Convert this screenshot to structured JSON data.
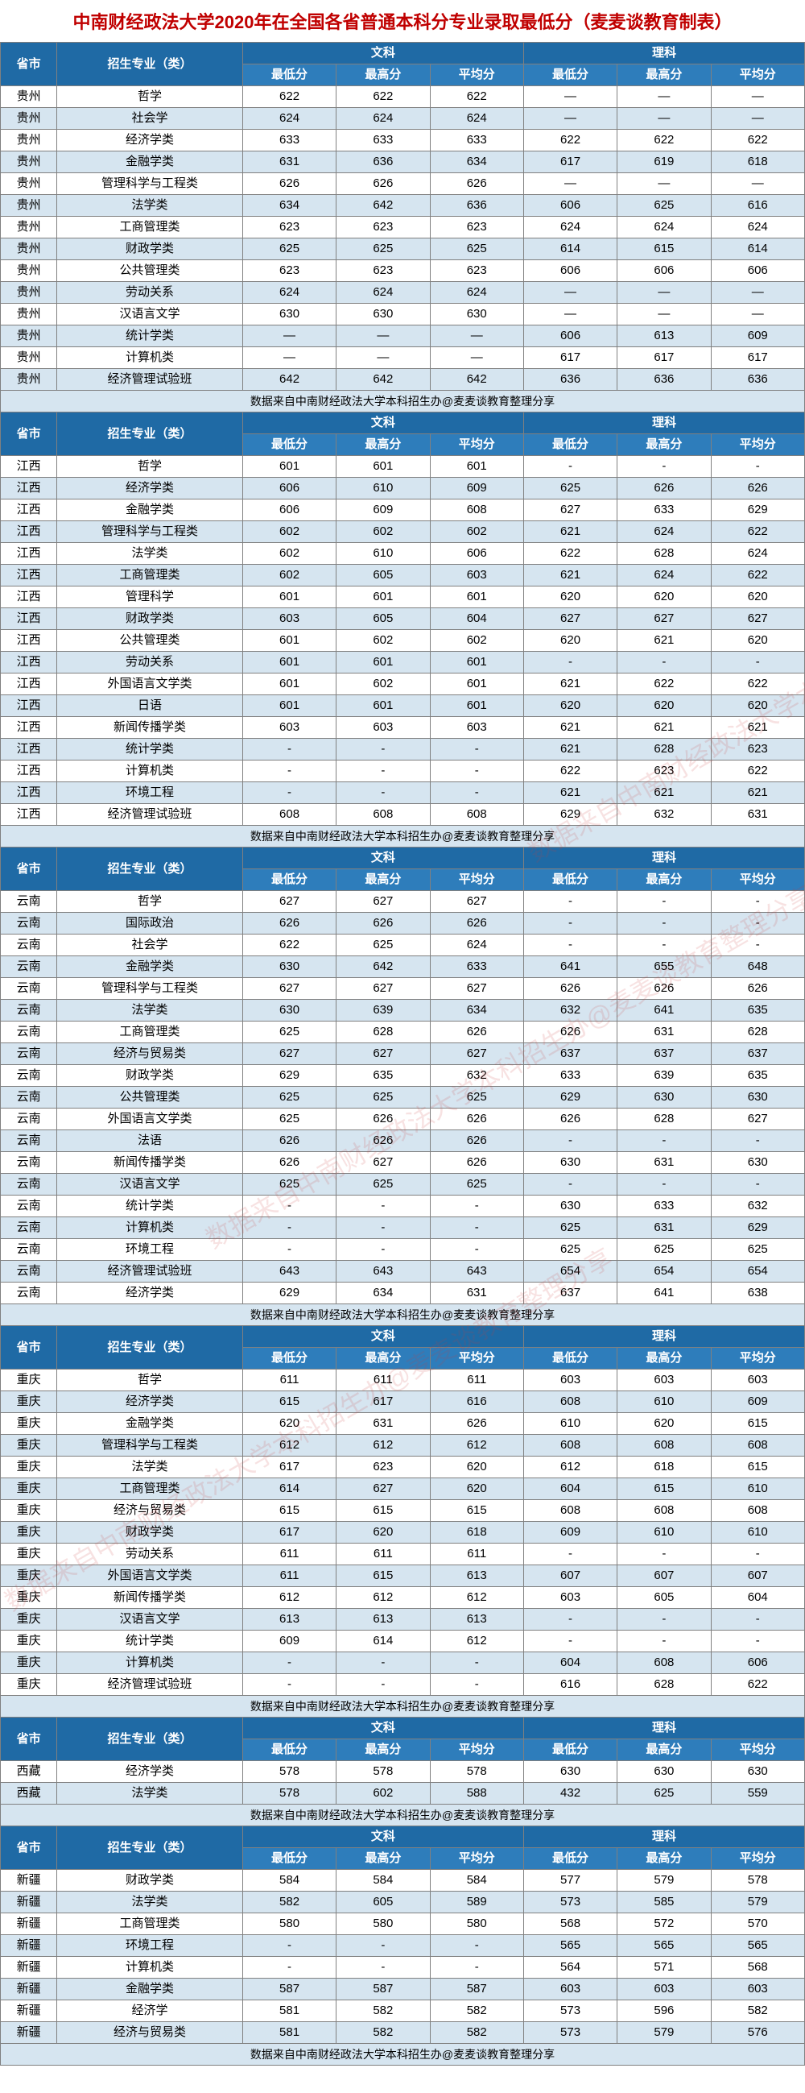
{
  "title": "中南财经政法大学2020年在全国各省普通本科分专业录取最低分（麦麦谈教育制表）",
  "source_note": "数据来自中南财经政法大学本科招生办@麦麦谈教育整理分享",
  "watermark_text": "数据来自中南财经政法大学本科招生办@麦麦谈教育整理分享",
  "headers": {
    "province": "省市",
    "major": "招生专业（类）",
    "liberal": "文科",
    "science": "理科",
    "min": "最低分",
    "max": "最高分",
    "avg": "平均分"
  },
  "colors": {
    "title": "#c00000",
    "header1_bg": "#1f6aa5",
    "header2_bg": "#2e7dbb",
    "header_fg": "#ffffff",
    "row_even_bg": "#d6e5f0",
    "row_odd_bg": "#ffffff",
    "border": "#808080"
  },
  "sections": [
    {
      "rows": [
        [
          "贵州",
          "哲学",
          "622",
          "622",
          "622",
          "—",
          "—",
          "—"
        ],
        [
          "贵州",
          "社会学",
          "624",
          "624",
          "624",
          "—",
          "—",
          "—"
        ],
        [
          "贵州",
          "经济学类",
          "633",
          "633",
          "633",
          "622",
          "622",
          "622"
        ],
        [
          "贵州",
          "金融学类",
          "631",
          "636",
          "634",
          "617",
          "619",
          "618"
        ],
        [
          "贵州",
          "管理科学与工程类",
          "626",
          "626",
          "626",
          "—",
          "—",
          "—"
        ],
        [
          "贵州",
          "法学类",
          "634",
          "642",
          "636",
          "606",
          "625",
          "616"
        ],
        [
          "贵州",
          "工商管理类",
          "623",
          "623",
          "623",
          "624",
          "624",
          "624"
        ],
        [
          "贵州",
          "财政学类",
          "625",
          "625",
          "625",
          "614",
          "615",
          "614"
        ],
        [
          "贵州",
          "公共管理类",
          "623",
          "623",
          "623",
          "606",
          "606",
          "606"
        ],
        [
          "贵州",
          "劳动关系",
          "624",
          "624",
          "624",
          "—",
          "—",
          "—"
        ],
        [
          "贵州",
          "汉语言文学",
          "630",
          "630",
          "630",
          "—",
          "—",
          "—"
        ],
        [
          "贵州",
          "统计学类",
          "—",
          "—",
          "—",
          "606",
          "613",
          "609"
        ],
        [
          "贵州",
          "计算机类",
          "—",
          "—",
          "—",
          "617",
          "617",
          "617"
        ],
        [
          "贵州",
          "经济管理试验班",
          "642",
          "642",
          "642",
          "636",
          "636",
          "636"
        ]
      ]
    },
    {
      "rows": [
        [
          "江西",
          "哲学",
          "601",
          "601",
          "601",
          "-",
          "-",
          "-"
        ],
        [
          "江西",
          "经济学类",
          "606",
          "610",
          "609",
          "625",
          "626",
          "626"
        ],
        [
          "江西",
          "金融学类",
          "606",
          "609",
          "608",
          "627",
          "633",
          "629"
        ],
        [
          "江西",
          "管理科学与工程类",
          "602",
          "602",
          "602",
          "621",
          "624",
          "622"
        ],
        [
          "江西",
          "法学类",
          "602",
          "610",
          "606",
          "622",
          "628",
          "624"
        ],
        [
          "江西",
          "工商管理类",
          "602",
          "605",
          "603",
          "621",
          "624",
          "622"
        ],
        [
          "江西",
          "管理科学",
          "601",
          "601",
          "601",
          "620",
          "620",
          "620"
        ],
        [
          "江西",
          "财政学类",
          "603",
          "605",
          "604",
          "627",
          "627",
          "627"
        ],
        [
          "江西",
          "公共管理类",
          "601",
          "602",
          "602",
          "620",
          "621",
          "620"
        ],
        [
          "江西",
          "劳动关系",
          "601",
          "601",
          "601",
          "-",
          "-",
          "-"
        ],
        [
          "江西",
          "外国语言文学类",
          "601",
          "602",
          "601",
          "621",
          "622",
          "622"
        ],
        [
          "江西",
          "日语",
          "601",
          "601",
          "601",
          "620",
          "620",
          "620"
        ],
        [
          "江西",
          "新闻传播学类",
          "603",
          "603",
          "603",
          "621",
          "621",
          "621"
        ],
        [
          "江西",
          "统计学类",
          "-",
          "-",
          "-",
          "621",
          "628",
          "623"
        ],
        [
          "江西",
          "计算机类",
          "-",
          "-",
          "-",
          "622",
          "623",
          "622"
        ],
        [
          "江西",
          "环境工程",
          "-",
          "-",
          "-",
          "621",
          "621",
          "621"
        ],
        [
          "江西",
          "经济管理试验班",
          "608",
          "608",
          "608",
          "629",
          "632",
          "631"
        ]
      ]
    },
    {
      "rows": [
        [
          "云南",
          "哲学",
          "627",
          "627",
          "627",
          "-",
          "-",
          "-"
        ],
        [
          "云南",
          "国际政治",
          "626",
          "626",
          "626",
          "-",
          "-",
          "-"
        ],
        [
          "云南",
          "社会学",
          "622",
          "625",
          "624",
          "-",
          "-",
          "-"
        ],
        [
          "云南",
          "金融学类",
          "630",
          "642",
          "633",
          "641",
          "655",
          "648"
        ],
        [
          "云南",
          "管理科学与工程类",
          "627",
          "627",
          "627",
          "626",
          "626",
          "626"
        ],
        [
          "云南",
          "法学类",
          "630",
          "639",
          "634",
          "632",
          "641",
          "635"
        ],
        [
          "云南",
          "工商管理类",
          "625",
          "628",
          "626",
          "626",
          "631",
          "628"
        ],
        [
          "云南",
          "经济与贸易类",
          "627",
          "627",
          "627",
          "637",
          "637",
          "637"
        ],
        [
          "云南",
          "财政学类",
          "629",
          "635",
          "632",
          "633",
          "639",
          "635"
        ],
        [
          "云南",
          "公共管理类",
          "625",
          "625",
          "625",
          "629",
          "630",
          "630"
        ],
        [
          "云南",
          "外国语言文学类",
          "625",
          "626",
          "626",
          "626",
          "628",
          "627"
        ],
        [
          "云南",
          "法语",
          "626",
          "626",
          "626",
          "-",
          "-",
          "-"
        ],
        [
          "云南",
          "新闻传播学类",
          "626",
          "627",
          "626",
          "630",
          "631",
          "630"
        ],
        [
          "云南",
          "汉语言文学",
          "625",
          "625",
          "625",
          "-",
          "-",
          "-"
        ],
        [
          "云南",
          "统计学类",
          "-",
          "-",
          "-",
          "630",
          "633",
          "632"
        ],
        [
          "云南",
          "计算机类",
          "-",
          "-",
          "-",
          "625",
          "631",
          "629"
        ],
        [
          "云南",
          "环境工程",
          "-",
          "-",
          "-",
          "625",
          "625",
          "625"
        ],
        [
          "云南",
          "经济管理试验班",
          "643",
          "643",
          "643",
          "654",
          "654",
          "654"
        ],
        [
          "云南",
          "经济学类",
          "629",
          "634",
          "631",
          "637",
          "641",
          "638"
        ]
      ]
    },
    {
      "rows": [
        [
          "重庆",
          "哲学",
          "611",
          "611",
          "611",
          "603",
          "603",
          "603"
        ],
        [
          "重庆",
          "经济学类",
          "615",
          "617",
          "616",
          "608",
          "610",
          "609"
        ],
        [
          "重庆",
          "金融学类",
          "620",
          "631",
          "626",
          "610",
          "620",
          "615"
        ],
        [
          "重庆",
          "管理科学与工程类",
          "612",
          "612",
          "612",
          "608",
          "608",
          "608"
        ],
        [
          "重庆",
          "法学类",
          "617",
          "623",
          "620",
          "612",
          "618",
          "615"
        ],
        [
          "重庆",
          "工商管理类",
          "614",
          "627",
          "620",
          "604",
          "615",
          "610"
        ],
        [
          "重庆",
          "经济与贸易类",
          "615",
          "615",
          "615",
          "608",
          "608",
          "608"
        ],
        [
          "重庆",
          "财政学类",
          "617",
          "620",
          "618",
          "609",
          "610",
          "610"
        ],
        [
          "重庆",
          "劳动关系",
          "611",
          "611",
          "611",
          "-",
          "-",
          "-"
        ],
        [
          "重庆",
          "外国语言文学类",
          "611",
          "615",
          "613",
          "607",
          "607",
          "607"
        ],
        [
          "重庆",
          "新闻传播学类",
          "612",
          "612",
          "612",
          "603",
          "605",
          "604"
        ],
        [
          "重庆",
          "汉语言文学",
          "613",
          "613",
          "613",
          "-",
          "-",
          "-"
        ],
        [
          "重庆",
          "统计学类",
          "609",
          "614",
          "612",
          "-",
          "-",
          "-"
        ],
        [
          "重庆",
          "计算机类",
          "-",
          "-",
          "-",
          "604",
          "608",
          "606"
        ],
        [
          "重庆",
          "经济管理试验班",
          "-",
          "-",
          "-",
          "616",
          "628",
          "622"
        ]
      ]
    },
    {
      "rows": [
        [
          "西藏",
          "经济学类",
          "578",
          "578",
          "578",
          "630",
          "630",
          "630"
        ],
        [
          "西藏",
          "法学类",
          "578",
          "602",
          "588",
          "432",
          "625",
          "559"
        ]
      ]
    },
    {
      "rows": [
        [
          "新疆",
          "财政学类",
          "584",
          "584",
          "584",
          "577",
          "579",
          "578"
        ],
        [
          "新疆",
          "法学类",
          "582",
          "605",
          "589",
          "573",
          "585",
          "579"
        ],
        [
          "新疆",
          "工商管理类",
          "580",
          "580",
          "580",
          "568",
          "572",
          "570"
        ],
        [
          "新疆",
          "环境工程",
          "-",
          "-",
          "-",
          "565",
          "565",
          "565"
        ],
        [
          "新疆",
          "计算机类",
          "-",
          "-",
          "-",
          "564",
          "571",
          "568"
        ],
        [
          "新疆",
          "金融学类",
          "587",
          "587",
          "587",
          "603",
          "603",
          "603"
        ],
        [
          "新疆",
          "经济学",
          "581",
          "582",
          "582",
          "573",
          "596",
          "582"
        ],
        [
          "新疆",
          "经济与贸易类",
          "581",
          "582",
          "582",
          "573",
          "579",
          "576"
        ]
      ]
    }
  ]
}
